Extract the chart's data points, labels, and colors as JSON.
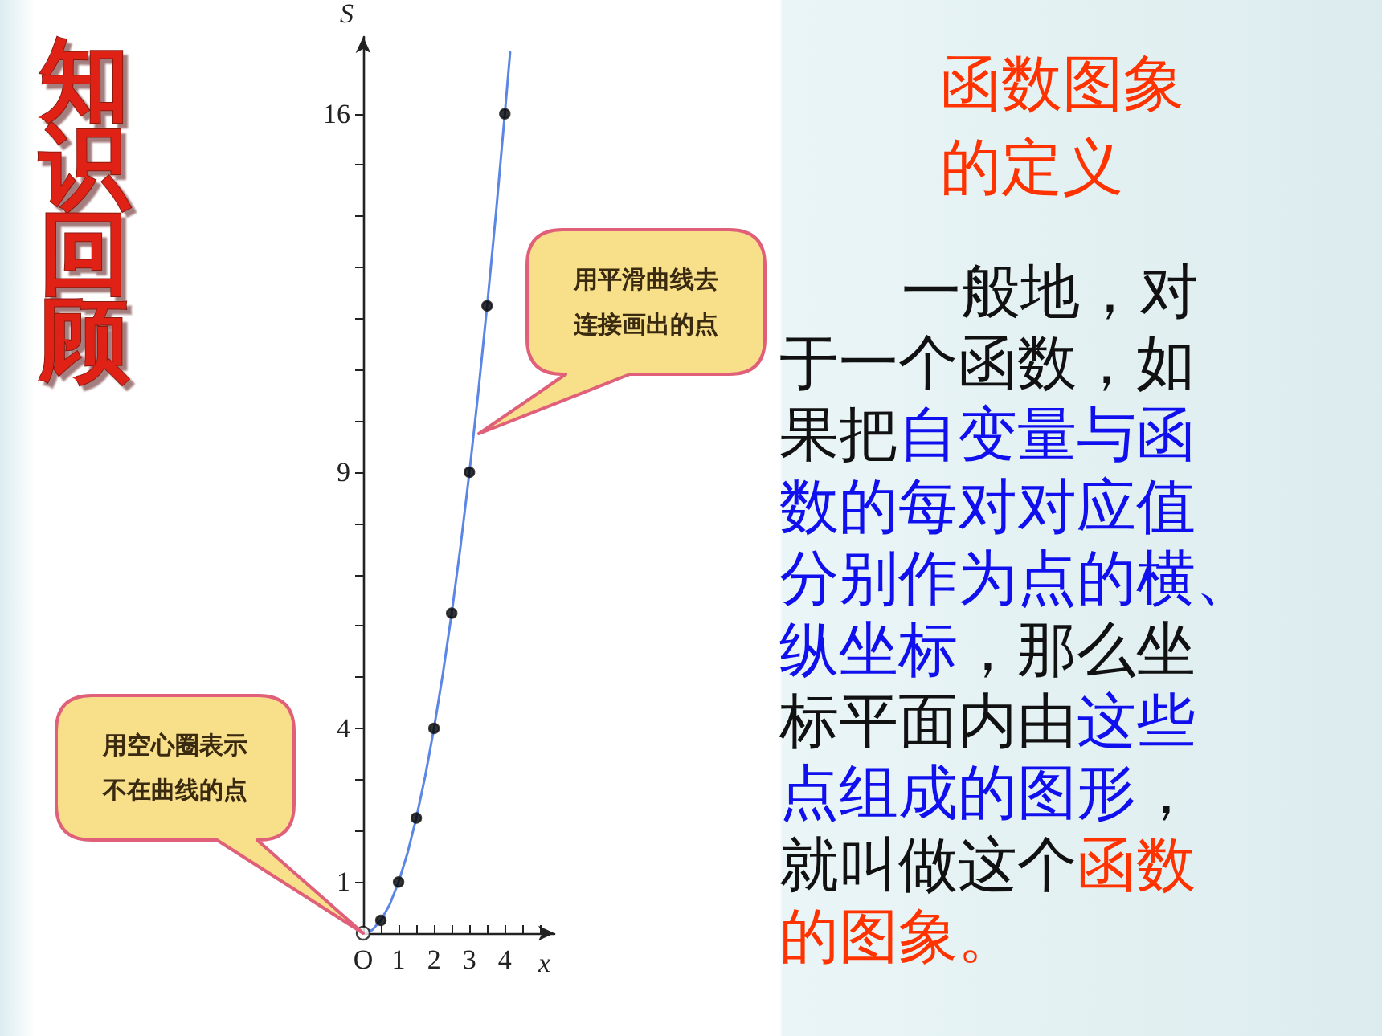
{
  "chart_data": {
    "type": "line",
    "title": "知识回顾",
    "subtitle": "函数图象的定义",
    "xlabel": "x",
    "ylabel": "S",
    "xlim": [
      0,
      5.4
    ],
    "ylim": [
      0,
      17.5
    ],
    "xticks": [
      {
        "value": 0,
        "label": "O"
      },
      {
        "value": 0.5,
        "label": null
      },
      1,
      {
        "value": 1.5,
        "label": null
      },
      2,
      {
        "value": 2.5,
        "label": null
      },
      3,
      {
        "value": 3.5,
        "label": null
      },
      4,
      {
        "value": 4.5,
        "label": null
      },
      {
        "value": 5,
        "label": null
      }
    ],
    "yticks": [
      1,
      {
        "value": 2,
        "label": null
      },
      {
        "value": 3,
        "label": null
      },
      4,
      {
        "value": 5,
        "label": null
      },
      {
        "value": 6,
        "label": null
      },
      {
        "value": 7,
        "label": null
      },
      {
        "value": 8,
        "label": null
      },
      9,
      {
        "value": 10,
        "label": null
      },
      {
        "value": 11,
        "label": null
      },
      {
        "value": 12,
        "label": null
      },
      {
        "value": 13,
        "label": null
      },
      {
        "value": 14,
        "label": null
      },
      {
        "value": 15,
        "label": null
      },
      16
    ],
    "grid": false,
    "series": [
      {
        "type": "line",
        "color": "#5b86e5",
        "marker": "none",
        "x": [
          0,
          0.25,
          0.5,
          0.75,
          1,
          1.25,
          1.5,
          1.75,
          2,
          2.25,
          2.5,
          2.75,
          3,
          3.25,
          3.5,
          3.75,
          4,
          4.15
        ],
        "values": [
          0,
          0.06,
          0.25,
          0.56,
          1,
          1.56,
          2.25,
          3.06,
          4,
          5.06,
          6.25,
          7.56,
          9,
          10.56,
          12.25,
          14.06,
          16,
          17.2
        ]
      },
      {
        "type": "scatter",
        "color": "#000000",
        "marker": "circle",
        "x": [
          0.5,
          1,
          1.5,
          2,
          2.5,
          3,
          3.5,
          4
        ],
        "values": [
          0.25,
          1,
          2.25,
          4,
          6.25,
          9,
          12.25,
          16
        ]
      },
      {
        "type": "scatter",
        "color": "#ffffff",
        "marker": "circle",
        "x": [
          0
        ],
        "values": [
          0
        ]
      }
    ],
    "annotations": [
      "一般地，对于一个函数，如果把",
      "自变量与函数的每对对应值分别作为点的横、纵坐标",
      "，那么坐标平面内由",
      "这些点组成的图形",
      "，就叫做这个",
      "函数的图象。",
      "用平滑曲线去连接画出的点",
      "用空心圈表示不在曲线的点"
    ]
  }
}
